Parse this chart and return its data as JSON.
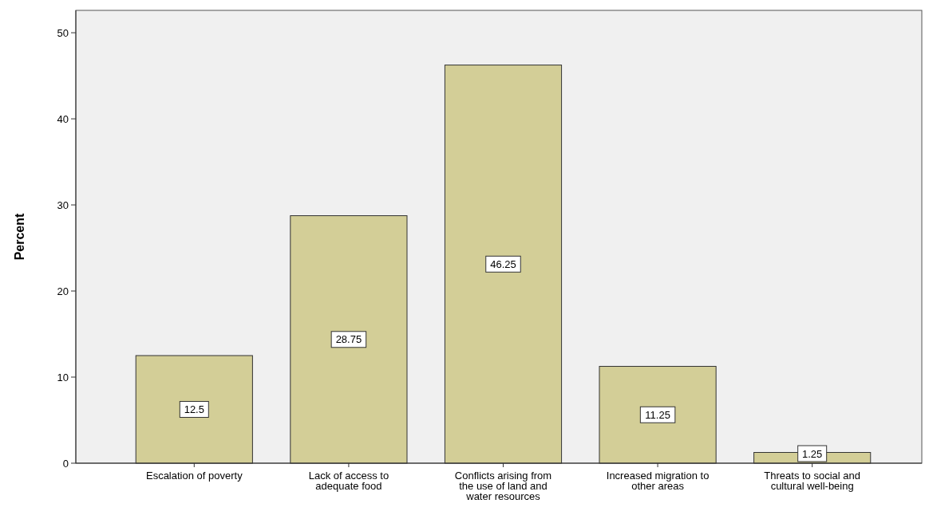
{
  "chart_data": {
    "type": "bar",
    "ylabel": "Percent",
    "categories": [
      "Escalation of poverty",
      "Lack of access to adequate food",
      "Conflicts arising from the use of land and water resources",
      "Increased migration to other areas",
      "Threats to social and cultural well-being"
    ],
    "values": [
      12.5,
      28.75,
      46.25,
      11.25,
      1.25
    ],
    "color": "#d3ce97",
    "ylim": [
      0,
      52.6
    ],
    "yticks": [
      0,
      10,
      20,
      30,
      40,
      50
    ],
    "grid": false,
    "data_labels": true
  }
}
